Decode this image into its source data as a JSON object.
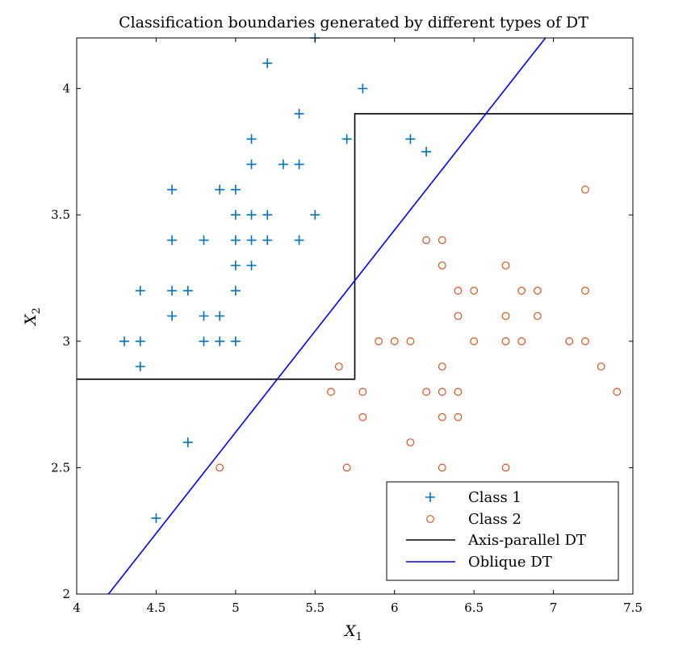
{
  "chart_data": {
    "type": "scatter",
    "title": "Classification boundaries generated by different types of DT",
    "xlabel": "X",
    "xlabel_sub": "1",
    "ylabel": "X",
    "ylabel_sub": "2",
    "xlim": [
      4,
      7.5
    ],
    "ylim": [
      2,
      4.2
    ],
    "xticks": [
      4,
      4.5,
      5,
      5.5,
      6,
      6.5,
      7,
      7.5
    ],
    "xtick_labels": [
      "4",
      "4.5",
      "5",
      "5.5",
      "6",
      "6.5",
      "7",
      "7.5"
    ],
    "yticks": [
      2,
      2.5,
      3,
      3.5,
      4
    ],
    "ytick_labels": [
      "2",
      "2.5",
      "3",
      "3.5",
      "4"
    ],
    "grid": false,
    "legend_position": "bottom-right",
    "series": [
      {
        "name": "Class 1",
        "marker": "plus",
        "color": "#0072BD",
        "points": [
          [
            5.5,
            4.2
          ],
          [
            5.2,
            4.1
          ],
          [
            5.8,
            4.0
          ],
          [
            5.4,
            3.9
          ],
          [
            5.7,
            3.8
          ],
          [
            5.1,
            3.8
          ],
          [
            6.1,
            3.8
          ],
          [
            6.2,
            3.75
          ],
          [
            5.1,
            3.7
          ],
          [
            5.3,
            3.7
          ],
          [
            5.4,
            3.7
          ],
          [
            4.6,
            3.6
          ],
          [
            4.9,
            3.6
          ],
          [
            5.0,
            3.6
          ],
          [
            5.0,
            3.5
          ],
          [
            5.1,
            3.5
          ],
          [
            5.2,
            3.5
          ],
          [
            5.5,
            3.5
          ],
          [
            4.6,
            3.4
          ],
          [
            4.8,
            3.4
          ],
          [
            5.0,
            3.4
          ],
          [
            5.1,
            3.4
          ],
          [
            5.2,
            3.4
          ],
          [
            5.4,
            3.4
          ],
          [
            5.0,
            3.3
          ],
          [
            5.1,
            3.3
          ],
          [
            4.4,
            3.2
          ],
          [
            4.6,
            3.2
          ],
          [
            4.7,
            3.2
          ],
          [
            5.0,
            3.2
          ],
          [
            4.6,
            3.1
          ],
          [
            4.8,
            3.1
          ],
          [
            4.9,
            3.1
          ],
          [
            4.3,
            3.0
          ],
          [
            4.4,
            3.0
          ],
          [
            4.8,
            3.0
          ],
          [
            4.9,
            3.0
          ],
          [
            5.0,
            3.0
          ],
          [
            4.4,
            2.9
          ],
          [
            4.7,
            2.6
          ],
          [
            4.5,
            2.3
          ]
        ]
      },
      {
        "name": "Class 2",
        "marker": "circle",
        "color": "#D95319",
        "points": [
          [
            7.2,
            3.6
          ],
          [
            6.2,
            3.4
          ],
          [
            6.3,
            3.4
          ],
          [
            6.3,
            3.3
          ],
          [
            6.7,
            3.3
          ],
          [
            6.4,
            3.2
          ],
          [
            6.5,
            3.2
          ],
          [
            6.8,
            3.2
          ],
          [
            6.9,
            3.2
          ],
          [
            7.2,
            3.2
          ],
          [
            6.4,
            3.1
          ],
          [
            6.7,
            3.1
          ],
          [
            6.9,
            3.1
          ],
          [
            5.9,
            3.0
          ],
          [
            6.0,
            3.0
          ],
          [
            6.1,
            3.0
          ],
          [
            6.5,
            3.0
          ],
          [
            6.7,
            3.0
          ],
          [
            6.8,
            3.0
          ],
          [
            7.1,
            3.0
          ],
          [
            7.2,
            3.0
          ],
          [
            5.65,
            2.9
          ],
          [
            6.3,
            2.9
          ],
          [
            7.3,
            2.9
          ],
          [
            5.6,
            2.8
          ],
          [
            5.8,
            2.8
          ],
          [
            6.2,
            2.8
          ],
          [
            6.3,
            2.8
          ],
          [
            6.4,
            2.8
          ],
          [
            7.4,
            2.8
          ],
          [
            5.8,
            2.7
          ],
          [
            6.3,
            2.7
          ],
          [
            6.4,
            2.7
          ],
          [
            6.1,
            2.6
          ],
          [
            4.9,
            2.5
          ],
          [
            5.7,
            2.5
          ],
          [
            6.3,
            2.5
          ],
          [
            6.7,
            2.5
          ]
        ]
      },
      {
        "name": "Axis-parallel DT",
        "marker": "line",
        "color": "#000000",
        "points": [
          [
            4.0,
            2.85
          ],
          [
            5.75,
            2.85
          ],
          [
            5.75,
            3.9
          ],
          [
            7.5,
            3.9
          ]
        ]
      },
      {
        "name": "Oblique DT",
        "marker": "line",
        "color": "#0000FF",
        "points": [
          [
            4.2,
            2.0
          ],
          [
            6.95,
            4.2
          ]
        ]
      }
    ]
  }
}
